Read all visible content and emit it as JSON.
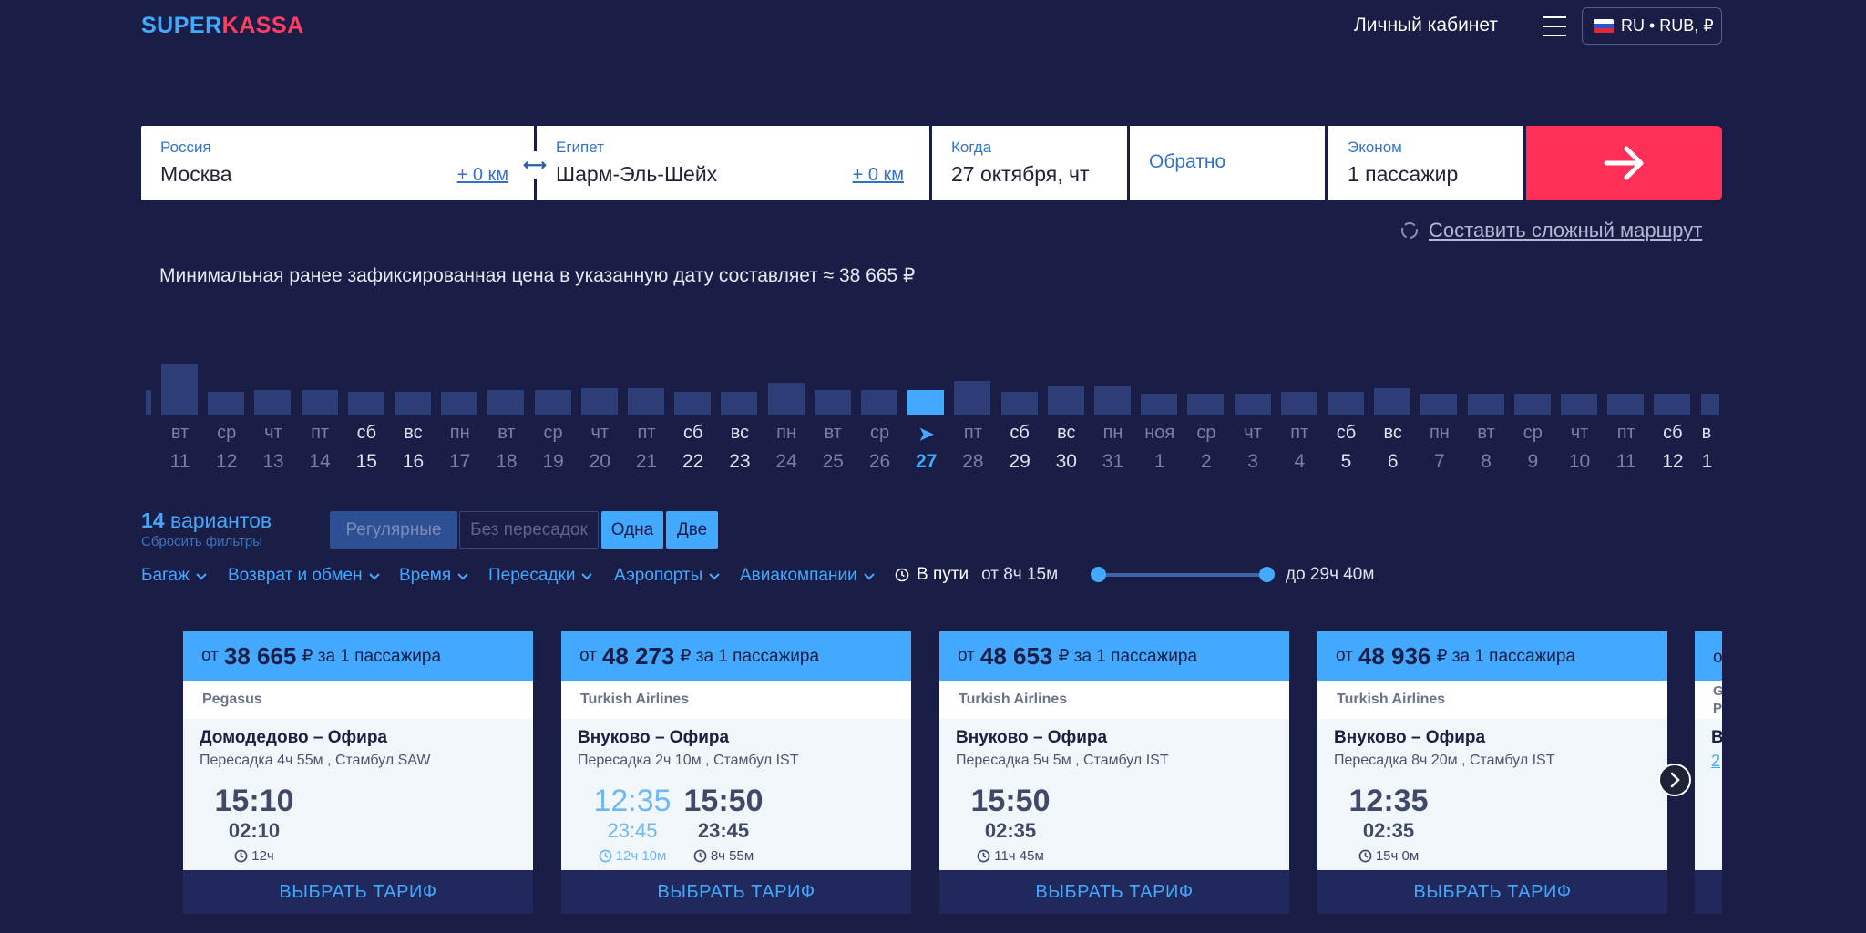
{
  "header": {
    "logo_part1": "SUPER",
    "logo_part2": "KASSA",
    "cabinet": "Личный кабинет",
    "locale": "RU • RUB, ₽"
  },
  "search": {
    "from": {
      "label": "Россия",
      "value": "Москва",
      "radius": "+ 0 км"
    },
    "to": {
      "label": "Египет",
      "value": "Шарм-Эль-Шейх",
      "radius": "+ 0 км"
    },
    "when": {
      "label": "Когда",
      "value": "27 октября, чт"
    },
    "back": {
      "label": "Обратно"
    },
    "class": {
      "label": "Эконом",
      "value": "1 пассажир"
    }
  },
  "complex_route": "Составить сложный маршрут",
  "min_price_text": "Минимальная ранее зафиксированная цена в указанную дату составляет ≈ 38 665 ₽",
  "calendar": {
    "selected_index": 16,
    "days": [
      {
        "dw": "вт",
        "dn": "11",
        "h": 56,
        "we": false
      },
      {
        "dw": "ср",
        "dn": "12",
        "h": 26,
        "we": false
      },
      {
        "dw": "чт",
        "dn": "13",
        "h": 28,
        "we": false
      },
      {
        "dw": "пт",
        "dn": "14",
        "h": 28,
        "we": false
      },
      {
        "dw": "сб",
        "dn": "15",
        "h": 26,
        "we": true
      },
      {
        "dw": "вс",
        "dn": "16",
        "h": 26,
        "we": true
      },
      {
        "dw": "пн",
        "dn": "17",
        "h": 26,
        "we": false
      },
      {
        "dw": "вт",
        "dn": "18",
        "h": 28,
        "we": false
      },
      {
        "dw": "ср",
        "dn": "19",
        "h": 28,
        "we": false
      },
      {
        "dw": "чт",
        "dn": "20",
        "h": 30,
        "we": false
      },
      {
        "dw": "пт",
        "dn": "21",
        "h": 30,
        "we": false
      },
      {
        "dw": "сб",
        "dn": "22",
        "h": 26,
        "we": true
      },
      {
        "dw": "вс",
        "dn": "23",
        "h": 26,
        "we": true
      },
      {
        "dw": "пн",
        "dn": "24",
        "h": 36,
        "we": false
      },
      {
        "dw": "вт",
        "dn": "25",
        "h": 28,
        "we": false
      },
      {
        "dw": "ср",
        "dn": "26",
        "h": 28,
        "we": false
      },
      {
        "dw": "➤",
        "dn": "27",
        "h": 28,
        "we": false
      },
      {
        "dw": "пт",
        "dn": "28",
        "h": 38,
        "we": false
      },
      {
        "dw": "сб",
        "dn": "29",
        "h": 26,
        "we": true
      },
      {
        "dw": "вс",
        "dn": "30",
        "h": 32,
        "we": true
      },
      {
        "dw": "пн",
        "dn": "31",
        "h": 32,
        "we": false
      },
      {
        "dw": "ноя",
        "dn": "1",
        "h": 24,
        "we": false
      },
      {
        "dw": "ср",
        "dn": "2",
        "h": 24,
        "we": false
      },
      {
        "dw": "чт",
        "dn": "3",
        "h": 24,
        "we": false
      },
      {
        "dw": "пт",
        "dn": "4",
        "h": 26,
        "we": false
      },
      {
        "dw": "сб",
        "dn": "5",
        "h": 26,
        "we": true
      },
      {
        "dw": "вс",
        "dn": "6",
        "h": 30,
        "we": true
      },
      {
        "dw": "пн",
        "dn": "7",
        "h": 24,
        "we": false
      },
      {
        "dw": "вт",
        "dn": "8",
        "h": 24,
        "we": false
      },
      {
        "dw": "ср",
        "dn": "9",
        "h": 24,
        "we": false
      },
      {
        "dw": "чт",
        "dn": "10",
        "h": 24,
        "we": false
      },
      {
        "dw": "пт",
        "dn": "11",
        "h": 24,
        "we": false
      },
      {
        "dw": "сб",
        "dn": "12",
        "h": 24,
        "we": true
      },
      {
        "dw": "в",
        "dn": "1",
        "h": 24,
        "we": true
      }
    ]
  },
  "results": {
    "count": "14",
    "count_label": "вариантов",
    "reset": "Сбросить фильтры",
    "toggles": [
      "Регулярные",
      "Без пересадок",
      "Одна",
      "Две"
    ],
    "filters": [
      "Багаж",
      "Возврат и обмен",
      "Время",
      "Пересадки",
      "Аэропорты",
      "Авиакомпании"
    ],
    "travel_label": "В пути",
    "travel_min": "от 8ч 15м",
    "travel_max": "до 29ч 40м"
  },
  "cards": [
    {
      "from": "от",
      "price": "38 665",
      "price_suffix": "₽ за 1 пассажира",
      "airline": "Pegasus",
      "route": "Домодедово – Офира",
      "transfer": "Пересадка 4ч 55м , Стамбул SAW",
      "times": [
        {
          "dep": "15:10",
          "arr": "02:10",
          "dur": "12ч",
          "light": false
        }
      ]
    },
    {
      "from": "от",
      "price": "48 273",
      "price_suffix": "₽ за 1 пассажира",
      "airline": "Turkish Airlines",
      "route": "Внуково – Офира",
      "transfer": "Пересадка 2ч 10м , Стамбул IST",
      "times": [
        {
          "dep": "12:35",
          "arr": "23:45",
          "dur": "12ч 10м",
          "light": true
        },
        {
          "dep": "15:50",
          "arr": "23:45",
          "dur": "8ч 55м",
          "light": false
        }
      ]
    },
    {
      "from": "от",
      "price": "48 653",
      "price_suffix": "₽ за 1 пассажира",
      "airline": "Turkish Airlines",
      "route": "Внуково – Офира",
      "transfer": "Пересадка 5ч 5м , Стамбул IST",
      "times": [
        {
          "dep": "15:50",
          "arr": "02:35",
          "dur": "11ч 45м",
          "light": false
        }
      ]
    },
    {
      "from": "от",
      "price": "48 936",
      "price_suffix": "₽ за 1 пассажира",
      "airline": "Turkish Airlines",
      "route": "Внуково – Офира",
      "transfer": "Пересадка 8ч 20м , Стамбул IST",
      "times": [
        {
          "dep": "12:35",
          "arr": "02:35",
          "dur": "15ч 0м",
          "light": false
        }
      ]
    }
  ],
  "select_tariff": "ВЫБРАТЬ ТАРИФ",
  "peek_card": {
    "price_from": "о",
    "airline": "G",
    "line2": "P",
    "route": "В",
    "link": "2"
  }
}
